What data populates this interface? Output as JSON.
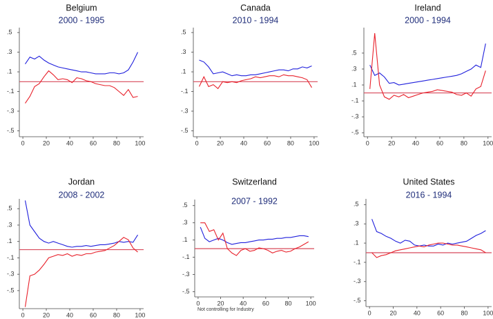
{
  "chart_data": [
    {
      "type": "line",
      "title": "Belgium",
      "subtitle": "2000 - 1995",
      "x": [
        2,
        6,
        10,
        14,
        18,
        22,
        26,
        30,
        34,
        38,
        42,
        46,
        50,
        54,
        58,
        62,
        66,
        70,
        74,
        78,
        82,
        86,
        90,
        94,
        98
      ],
      "series": [
        {
          "color": "#1f1fdc",
          "values": [
            0.18,
            0.25,
            0.23,
            0.26,
            0.22,
            0.19,
            0.17,
            0.15,
            0.14,
            0.13,
            0.12,
            0.11,
            0.1,
            0.1,
            0.09,
            0.08,
            0.08,
            0.08,
            0.09,
            0.09,
            0.08,
            0.09,
            0.12,
            0.2,
            0.3
          ]
        },
        {
          "color": "#e8202a",
          "values": [
            -0.22,
            -0.15,
            -0.05,
            -0.02,
            0.05,
            0.11,
            0.07,
            0.02,
            0.03,
            0.02,
            -0.01,
            0.04,
            0.03,
            0.01,
            0,
            -0.02,
            -0.03,
            -0.04,
            -0.04,
            -0.06,
            -0.1,
            -0.14,
            -0.08,
            -0.16,
            -0.15
          ]
        }
      ],
      "refline": {
        "value": 0,
        "color": "#d8485a"
      },
      "xlim": [
        -3,
        103
      ],
      "xticks": [
        0,
        20,
        40,
        60,
        80,
        100
      ],
      "ylim": [
        -0.56,
        0.55
      ],
      "yticks": [
        {
          "value": -0.5,
          "label": "-.5"
        },
        {
          "value": -0.3,
          "label": "-.3"
        },
        {
          "value": -0.1,
          "label": "-.1"
        },
        {
          "value": 0.1,
          "label": ".1"
        },
        {
          "value": 0.3,
          "label": ".3"
        },
        {
          "value": 0.5,
          "label": ".5"
        }
      ]
    },
    {
      "type": "line",
      "title": "Canada",
      "subtitle": "2010 - 1994",
      "x": [
        2,
        6,
        10,
        14,
        18,
        22,
        26,
        30,
        34,
        38,
        42,
        46,
        50,
        54,
        58,
        62,
        66,
        70,
        74,
        78,
        82,
        86,
        90,
        94,
        98
      ],
      "series": [
        {
          "color": "#1f1fdc",
          "values": [
            0.22,
            0.2,
            0.15,
            0.08,
            0.09,
            0.1,
            0.08,
            0.06,
            0.07,
            0.06,
            0.06,
            0.07,
            0.07,
            0.08,
            0.09,
            0.1,
            0.11,
            0.12,
            0.12,
            0.11,
            0.13,
            0.13,
            0.15,
            0.14,
            0.16
          ]
        },
        {
          "color": "#e8202a",
          "values": [
            -0.05,
            0.05,
            -0.05,
            -0.03,
            -0.07,
            0,
            -0.01,
            0,
            -0.01,
            0.01,
            0.02,
            0.03,
            0.05,
            0.04,
            0.05,
            0.06,
            0.06,
            0.05,
            0.07,
            0.06,
            0.06,
            0.05,
            0.04,
            0.02,
            -0.06
          ]
        }
      ],
      "refline": {
        "value": 0,
        "color": "#d8485a"
      },
      "xlim": [
        -3,
        103
      ],
      "xticks": [
        0,
        20,
        40,
        60,
        80,
        100
      ],
      "ylim": [
        -0.56,
        0.55
      ],
      "yticks": [
        {
          "value": -0.5,
          "label": "-.5"
        },
        {
          "value": -0.3,
          "label": "-.3"
        },
        {
          "value": -0.1,
          "label": "-.1"
        },
        {
          "value": 0.1,
          "label": ".1"
        },
        {
          "value": 0.3,
          "label": ".3"
        },
        {
          "value": 0.5,
          "label": ".5"
        }
      ]
    },
    {
      "type": "line",
      "title": "Ireland",
      "subtitle": "2000 - 1994",
      "x": [
        2,
        6,
        10,
        14,
        18,
        22,
        26,
        30,
        34,
        38,
        42,
        46,
        50,
        54,
        58,
        62,
        66,
        70,
        74,
        78,
        82,
        86,
        90,
        94,
        98
      ],
      "series": [
        {
          "color": "#1f1fdc",
          "values": [
            0.35,
            0.22,
            0.25,
            0.2,
            0.12,
            0.13,
            0.1,
            0.11,
            0.12,
            0.13,
            0.14,
            0.15,
            0.16,
            0.17,
            0.18,
            0.19,
            0.2,
            0.21,
            0.22,
            0.24,
            0.27,
            0.3,
            0.35,
            0.32,
            0.62
          ]
        },
        {
          "color": "#e8202a",
          "values": [
            0.05,
            0.75,
            0.1,
            -0.05,
            -0.08,
            -0.03,
            -0.05,
            -0.02,
            -0.06,
            -0.04,
            -0.02,
            0,
            0.01,
            0.02,
            0.04,
            0.03,
            0.02,
            0.01,
            -0.02,
            -0.03,
            0,
            -0.04,
            0.05,
            0.08,
            0.28
          ]
        }
      ],
      "refline": {
        "value": 0,
        "color": "#d8485a"
      },
      "xlim": [
        -3,
        103
      ],
      "xticks": [
        0,
        20,
        40,
        60,
        80,
        100
      ],
      "ylim": [
        -0.55,
        0.82
      ],
      "yticks": [
        {
          "value": -0.5,
          "label": "-.5"
        },
        {
          "value": -0.3,
          "label": "-.3"
        },
        {
          "value": -0.1,
          "label": "-.1"
        },
        {
          "value": 0.1,
          "label": ".1"
        },
        {
          "value": 0.3,
          "label": ".3"
        },
        {
          "value": 0.5,
          "label": ".5"
        }
      ]
    },
    {
      "type": "line",
      "title": "Jordan",
      "subtitle": "2008 - 2002",
      "x": [
        2,
        6,
        10,
        14,
        18,
        22,
        26,
        30,
        34,
        38,
        42,
        46,
        50,
        54,
        58,
        62,
        66,
        70,
        74,
        78,
        82,
        86,
        90,
        94,
        98
      ],
      "series": [
        {
          "color": "#1f1fdc",
          "values": [
            0.6,
            0.3,
            0.22,
            0.14,
            0.1,
            0.08,
            0.1,
            0.08,
            0.06,
            0.04,
            0.03,
            0.04,
            0.04,
            0.05,
            0.04,
            0.05,
            0.06,
            0.06,
            0.07,
            0.08,
            0.1,
            0.09,
            0.1,
            0.09,
            0.18
          ]
        },
        {
          "color": "#e8202a",
          "values": [
            -0.7,
            -0.32,
            -0.3,
            -0.25,
            -0.18,
            -0.1,
            -0.08,
            -0.06,
            -0.07,
            -0.05,
            -0.08,
            -0.06,
            -0.07,
            -0.05,
            -0.05,
            -0.03,
            -0.02,
            -0.01,
            0.02,
            0.05,
            0.1,
            0.15,
            0.12,
            0.02,
            -0.03
          ]
        }
      ],
      "refline": {
        "value": 0,
        "color": "#d8485a"
      },
      "xlim": [
        -3,
        103
      ],
      "xticks": [
        0,
        20,
        40,
        60,
        80,
        100
      ],
      "ylim": [
        -0.72,
        0.62
      ],
      "yticks": [
        {
          "value": -0.5,
          "label": "-.5"
        },
        {
          "value": -0.3,
          "label": "-.3"
        },
        {
          "value": -0.1,
          "label": "-.1"
        },
        {
          "value": 0.1,
          "label": ".1"
        },
        {
          "value": 0.3,
          "label": ".3"
        },
        {
          "value": 0.5,
          "label": ".5"
        }
      ]
    },
    {
      "type": "line",
      "title": "Switzerland",
      "subtitle": "2007 - 1992",
      "annotation": "Not controlling for Industry",
      "x": [
        2,
        6,
        10,
        14,
        18,
        22,
        26,
        30,
        34,
        38,
        42,
        46,
        50,
        54,
        58,
        62,
        66,
        70,
        74,
        78,
        82,
        86,
        90,
        94,
        98
      ],
      "series": [
        {
          "color": "#1f1fdc",
          "values": [
            0.25,
            0.12,
            0.08,
            0.1,
            0.12,
            0.1,
            0.07,
            0.05,
            0.06,
            0.07,
            0.07,
            0.08,
            0.09,
            0.1,
            0.1,
            0.11,
            0.11,
            0.12,
            0.12,
            0.13,
            0.13,
            0.14,
            0.15,
            0.15,
            0.14
          ]
        },
        {
          "color": "#e8202a",
          "values": [
            0.3,
            0.3,
            0.2,
            0.22,
            0.1,
            0.18,
            0,
            -0.05,
            -0.08,
            -0.02,
            0,
            -0.03,
            -0.02,
            0.01,
            0,
            -0.02,
            -0.05,
            -0.03,
            -0.02,
            -0.04,
            -0.03,
            0,
            0.02,
            0.05,
            0.08
          ]
        }
      ],
      "refline": {
        "value": 0,
        "color": "#d8485a"
      },
      "xlim": [
        -3,
        103
      ],
      "xticks": [
        0,
        20,
        40,
        60,
        80,
        100
      ],
      "ylim": [
        -0.56,
        0.57
      ],
      "yticks": [
        {
          "value": -0.5,
          "label": "-.5"
        },
        {
          "value": -0.3,
          "label": "-.3"
        },
        {
          "value": -0.1,
          "label": "-.1"
        },
        {
          "value": 0.1,
          "label": ".1"
        },
        {
          "value": 0.3,
          "label": ".3"
        },
        {
          "value": 0.5,
          "label": ".5"
        }
      ]
    },
    {
      "type": "line",
      "title": "United States",
      "subtitle": "2016 - 1994",
      "x": [
        2,
        6,
        10,
        14,
        18,
        22,
        26,
        30,
        34,
        38,
        42,
        46,
        50,
        54,
        58,
        62,
        66,
        70,
        74,
        78,
        82,
        86,
        90,
        94,
        98
      ],
      "series": [
        {
          "color": "#1f1fdc",
          "values": [
            0.35,
            0.22,
            0.2,
            0.17,
            0.15,
            0.12,
            0.1,
            0.13,
            0.12,
            0.08,
            0.07,
            0.08,
            0.07,
            0.07,
            0.09,
            0.08,
            0.1,
            0.09,
            0.1,
            0.11,
            0.12,
            0.15,
            0.18,
            0.2,
            0.23
          ]
        },
        {
          "color": "#e8202a",
          "values": [
            0,
            -0.05,
            -0.03,
            -0.02,
            0,
            0.02,
            0.03,
            0.04,
            0.05,
            0.06,
            0.07,
            0.06,
            0.08,
            0.09,
            0.1,
            0.1,
            0.09,
            0.08,
            0.08,
            0.07,
            0.06,
            0.05,
            0.04,
            0.03,
            0
          ]
        }
      ],
      "refline": {
        "value": 0,
        "color": "#d8485a"
      },
      "xlim": [
        -3,
        103
      ],
      "xticks": [
        0,
        20,
        40,
        60,
        80,
        100
      ],
      "ylim": [
        -0.56,
        0.56
      ],
      "yticks": [
        {
          "value": -0.5,
          "label": "-.5"
        },
        {
          "value": -0.3,
          "label": "-.3"
        },
        {
          "value": -0.1,
          "label": "-.1"
        },
        {
          "value": 0.1,
          "label": ".1"
        },
        {
          "value": 0.3,
          "label": ".3"
        },
        {
          "value": 0.5,
          "label": ".5"
        }
      ]
    }
  ]
}
